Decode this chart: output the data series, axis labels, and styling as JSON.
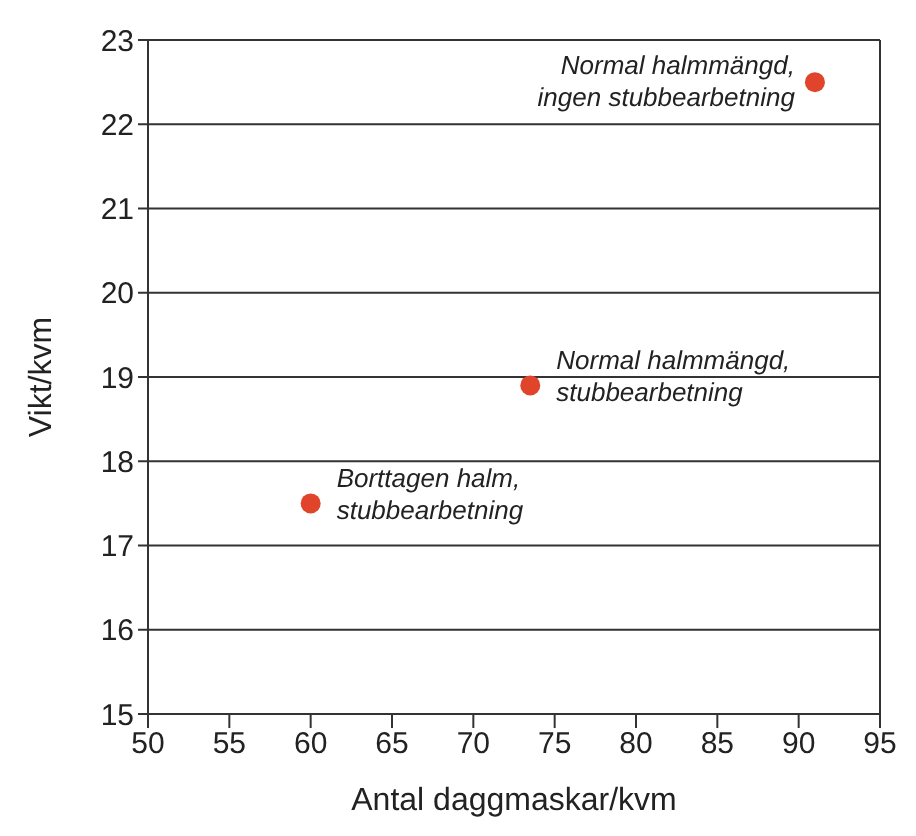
{
  "chart_data": {
    "type": "scatter",
    "xlabel": "Antal daggmaskar/kvm",
    "ylabel": "Vikt/kvm",
    "x": [
      60,
      73.5,
      91
    ],
    "values": [
      17.5,
      18.9,
      22.5
    ],
    "color": "#e0452b",
    "xlim": [
      50,
      95
    ],
    "xticks": [
      50,
      55,
      60,
      65,
      70,
      75,
      80,
      85,
      90,
      95
    ],
    "ylim": [
      15,
      23
    ],
    "yticks": [
      15,
      16,
      17,
      18,
      19,
      20,
      21,
      22,
      23
    ],
    "grid": "y",
    "marker": "circle",
    "annotations": [
      {
        "text": "Borttagen halm,\nstubbearbetning",
        "x": 60,
        "y": 17.5
      },
      {
        "text": "Normal halmmängd,\nstubbearbetning",
        "x": 73.5,
        "y": 18.9
      },
      {
        "text": "Normal halmmängd,\ningen stubbearbetning",
        "x": 91,
        "y": 22.5
      }
    ]
  }
}
